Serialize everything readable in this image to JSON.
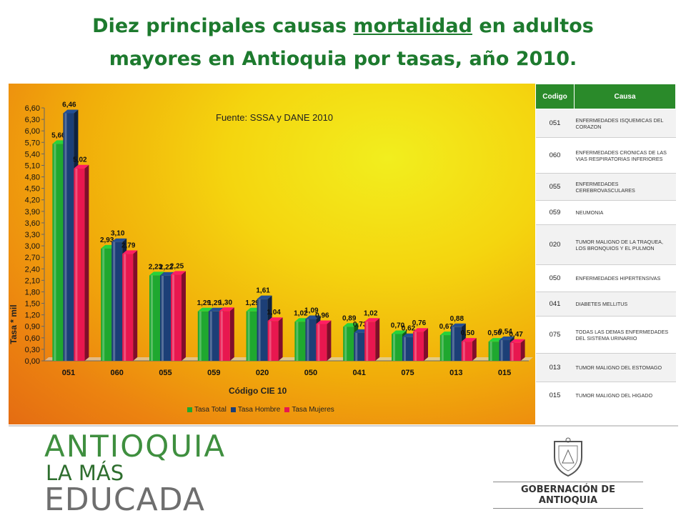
{
  "title": {
    "part1": "Diez principales  causas ",
    "underlined": "mortalidad",
    "part2": " en adultos",
    "line2": "mayores en Antioquia por tasas,  año 2010."
  },
  "source": "Fuente: SSSA y DANE 2010",
  "chart_data": {
    "type": "bar",
    "categories": [
      "051",
      "060",
      "055",
      "059",
      "020",
      "050",
      "041",
      "075",
      "013",
      "015"
    ],
    "series": [
      {
        "name": "Tasa Total",
        "color": "#1fa82f",
        "values": [
          5.66,
          2.93,
          2.23,
          1.29,
          1.29,
          1.02,
          0.89,
          0.7,
          0.67,
          0.5
        ],
        "labels": [
          "5,66",
          "2,93",
          "2,23",
          "1,29",
          "1,29",
          "1,02",
          "0,89",
          "0,70",
          "0,67",
          "0,50"
        ]
      },
      {
        "name": "Tasa Hombre",
        "color": "#1c3f77",
        "values": [
          6.46,
          3.1,
          2.22,
          1.29,
          1.61,
          1.09,
          0.73,
          0.62,
          0.88,
          0.54
        ],
        "labels": [
          "6,46",
          "3,10",
          "2,22",
          "1,29",
          "1,61",
          "1,09",
          "0,73",
          "0,62",
          "0,88",
          "0,54"
        ]
      },
      {
        "name": "Tasa Mujeres",
        "color": "#e8174f",
        "values": [
          5.02,
          2.79,
          2.25,
          1.3,
          1.04,
          0.96,
          1.02,
          0.76,
          0.5,
          0.47
        ],
        "labels": [
          "5,02",
          "2,79",
          "2,25",
          "1,30",
          "1,04",
          "0,96",
          "1,02",
          "0,76",
          "0,50",
          "0,47"
        ]
      }
    ],
    "ylim": [
      0,
      6.6
    ],
    "yticks": [
      "0,00",
      "0,30",
      "0,60",
      "0,90",
      "1,20",
      "1,50",
      "1,80",
      "2,10",
      "2,40",
      "2,70",
      "3,00",
      "3,30",
      "3,60",
      "3,90",
      "4,20",
      "4,50",
      "4,80",
      "5,10",
      "5,40",
      "5,70",
      "6,00",
      "6,30",
      "6,60"
    ],
    "xlabel": "Código CIE 10",
    "ylabel": "Tasa * mil",
    "legend_position": "bottom"
  },
  "table": {
    "headers": [
      "Codigo",
      "Causa"
    ],
    "rows": [
      {
        "code": "051",
        "cause": "ENFERMEDADES ISQUEMICAS DEL CORAZON"
      },
      {
        "code": "060",
        "cause": "ENFERMEDADES CRONICAS DE LAS VIAS RESPIRATORIAS INFERIORES"
      },
      {
        "code": "055",
        "cause": "ENFERMEDADES CEREBROVASCULARES"
      },
      {
        "code": "059",
        "cause": "NEUMONIA"
      },
      {
        "code": "020",
        "cause": "TUMOR MALIGNO DE LA TRAQUEA, LOS BRONQUIOS Y EL PULMON"
      },
      {
        "code": "050",
        "cause": "ENFERMEDADES HIPERTENSIVAS"
      },
      {
        "code": "041",
        "cause": "DIABETES MELLITUS"
      },
      {
        "code": "075",
        "cause": "TODAS LAS DEMAS ENFERMEDADES DEL SISTEMA URINARIIO"
      },
      {
        "code": "013",
        "cause": "TUMOR MALIGNO DEL ESTOMAGO"
      },
      {
        "code": "015",
        "cause": "TUMOR MALIGNO DEL HIGADO"
      }
    ]
  },
  "logos": {
    "left_line1": "ANTIOQUIA",
    "left_line2": "LA MÁS",
    "left_line3": "EDUCADA",
    "right_text": "GOBERNACIÓN DE ANTIOQUIA"
  }
}
